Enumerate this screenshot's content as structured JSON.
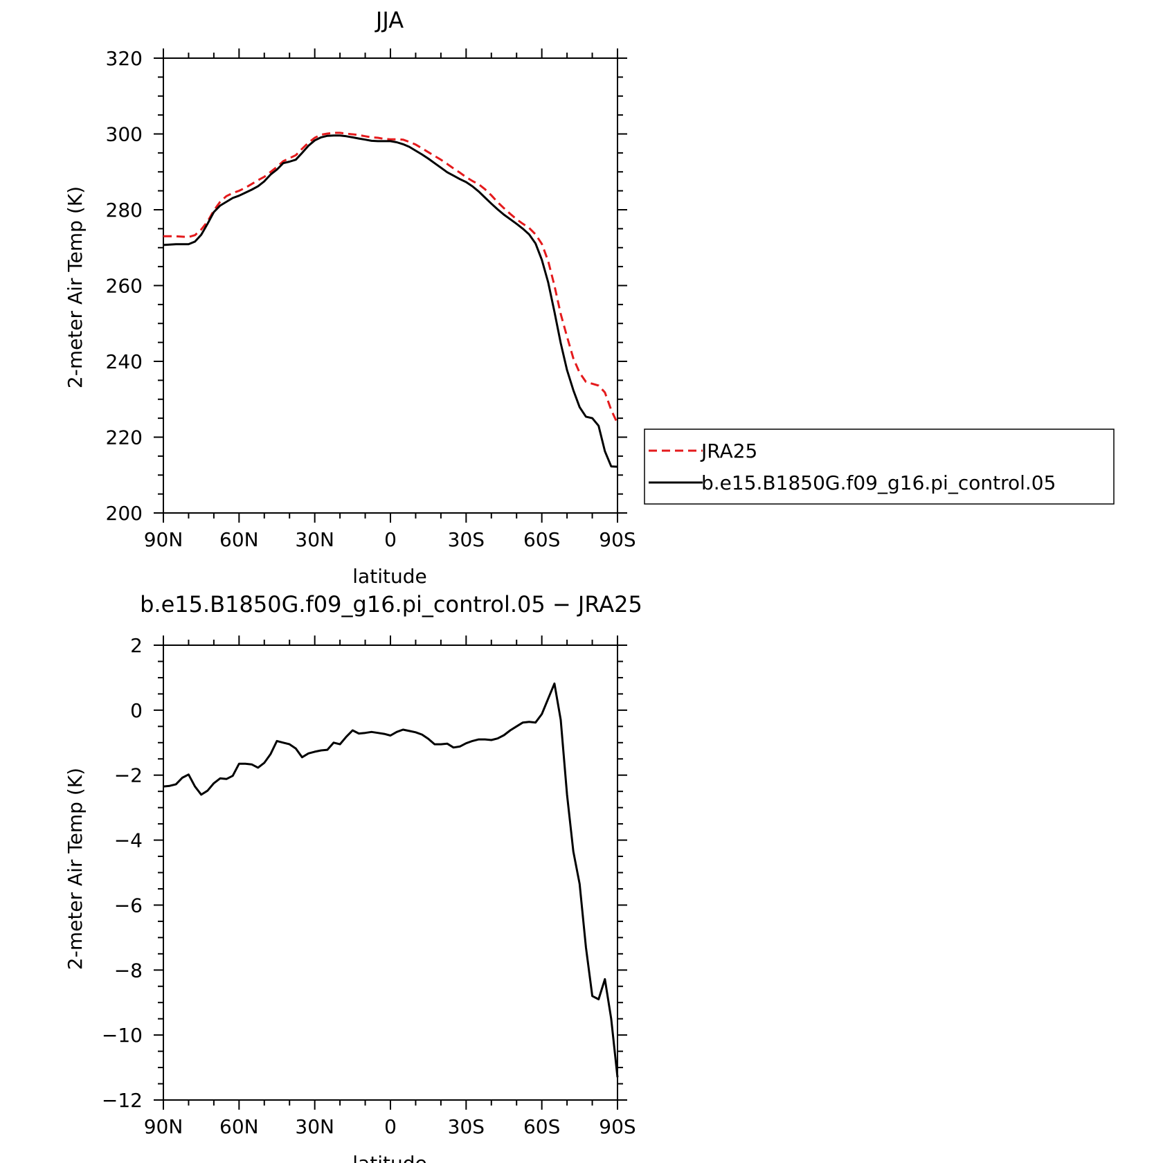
{
  "chart_data": [
    {
      "type": "line",
      "title": "JJA",
      "xlabel": "latitude",
      "ylabel": "2-meter Air Temp (K)",
      "xlim": [
        90,
        -90
      ],
      "ylim": [
        200,
        320
      ],
      "xticks": [
        90,
        60,
        30,
        0,
        -30,
        -60,
        -90
      ],
      "xtick_labels": [
        "90N",
        "60N",
        "30N",
        "0",
        "30S",
        "60S",
        "90S"
      ],
      "yticks": [
        200,
        220,
        240,
        260,
        280,
        300,
        320
      ],
      "ytick_labels": [
        "200",
        "220",
        "240",
        "260",
        "280",
        "300",
        "320"
      ],
      "legend_position": "right",
      "series": [
        {
          "name": "JRA25",
          "color": "#e41a1c",
          "dash": true,
          "x": [
            90,
            85,
            80,
            77.5,
            75,
            72.5,
            70,
            67.5,
            65,
            62.5,
            60,
            57.5,
            55,
            52.5,
            50,
            47.5,
            45,
            42.5,
            40,
            37.5,
            35,
            32.5,
            30,
            27.5,
            25,
            22.5,
            20,
            17.5,
            15,
            12.5,
            10,
            7.5,
            5,
            2.5,
            0,
            -2.5,
            -5,
            -7.5,
            -10,
            -12.5,
            -15,
            -17.5,
            -20,
            -22.5,
            -25,
            -27.5,
            -30,
            -32.5,
            -35,
            -37.5,
            -40,
            -42.5,
            -45,
            -47.5,
            -50,
            -52.5,
            -55,
            -57.5,
            -60,
            -62.5,
            -65,
            -67.5,
            -70,
            -72.5,
            -75,
            -77.5,
            -80,
            -82.5,
            -85,
            -87.5,
            -90
          ],
          "y": [
            273,
            273,
            272.8,
            273.3,
            274.8,
            276.9,
            279.8,
            282.1,
            283.6,
            284.4,
            285.0,
            285.8,
            286.8,
            287.8,
            288.7,
            290.0,
            291.3,
            292.8,
            293.6,
            294.4,
            296.1,
            297.7,
            299.0,
            299.8,
            300.1,
            300.3,
            300.3,
            300.1,
            299.9,
            299.7,
            299.4,
            299.1,
            299.0,
            298.7,
            298.6,
            298.6,
            298.5,
            297.9,
            297.2,
            296.2,
            295.2,
            294.2,
            293.2,
            292.1,
            290.9,
            289.8,
            288.6,
            287.6,
            286.7,
            285.4,
            283.8,
            282.0,
            280.4,
            278.9,
            277.5,
            276.3,
            275.2,
            273.5,
            271.0,
            266.5,
            260.0,
            252.5,
            246.5,
            240.8,
            237.0,
            234.6,
            234.1,
            233.6,
            231.8,
            227.2,
            223.6
          ]
        },
        {
          "name": "b.e15.B1850G.f09_g16.pi_control.05",
          "color": "#000000",
          "dash": false,
          "x": [
            90,
            85,
            80,
            77.5,
            75,
            72.5,
            70,
            67.5,
            65,
            62.5,
            60,
            57.5,
            55,
            52.5,
            50,
            47.5,
            45,
            42.5,
            40,
            37.5,
            35,
            32.5,
            30,
            27.5,
            25,
            22.5,
            20,
            17.5,
            15,
            12.5,
            10,
            7.5,
            5,
            2.5,
            0,
            -2.5,
            -5,
            -7.5,
            -10,
            -12.5,
            -15,
            -17.5,
            -20,
            -22.5,
            -25,
            -27.5,
            -30,
            -32.5,
            -35,
            -37.5,
            -40,
            -42.5,
            -45,
            -47.5,
            -50,
            -52.5,
            -55,
            -57.5,
            -60,
            -62.5,
            -65,
            -67.5,
            -70,
            -72.5,
            -75,
            -77.5,
            -80,
            -82.5,
            -85,
            -87.5,
            -90
          ],
          "y": [
            270.7,
            270.9,
            270.9,
            271.6,
            273.4,
            276.3,
            279.4,
            281.1,
            282.1,
            283.1,
            283.7,
            284.5,
            285.3,
            286.2,
            287.5,
            289.3,
            290.6,
            292.3,
            292.7,
            293.2,
            295.0,
            296.9,
            298.3,
            299.1,
            299.5,
            299.6,
            299.6,
            299.4,
            299.1,
            298.8,
            298.5,
            298.2,
            298.1,
            298.1,
            298.1,
            297.8,
            297.3,
            296.6,
            295.6,
            294.6,
            293.5,
            292.3,
            291.1,
            289.9,
            289.0,
            288.1,
            287.3,
            286.2,
            284.8,
            283.2,
            281.6,
            280.1,
            278.7,
            277.5,
            276.3,
            275.0,
            273.5,
            271.1,
            266.8,
            260.9,
            253.1,
            244.8,
            237.7,
            232.4,
            227.9,
            225.4,
            225.0,
            223.0,
            216.3,
            212.3,
            212.2
          ]
        }
      ]
    },
    {
      "type": "line",
      "title": "b.e15.B1850G.f09_g16.pi_control.05 − JRA25",
      "xlabel": "latitude",
      "ylabel": "2-meter Air Temp (K)",
      "xlim": [
        90,
        -90
      ],
      "ylim": [
        -12,
        2
      ],
      "xticks": [
        90,
        60,
        30,
        0,
        -30,
        -60,
        -90
      ],
      "xtick_labels": [
        "90N",
        "60N",
        "30N",
        "0",
        "30S",
        "60S",
        "90S"
      ],
      "yticks": [
        2,
        0,
        -2,
        -4,
        -6,
        -8,
        -10,
        -12
      ],
      "ytick_labels": [
        "2",
        "0",
        "−2",
        "−4",
        "−6",
        "−8",
        "−10",
        "−12"
      ],
      "series": [
        {
          "color": "#000000",
          "dash": false,
          "x": [
            90,
            87.5,
            85,
            82.5,
            80,
            77.5,
            75,
            72.5,
            70,
            67.5,
            65,
            62.5,
            60,
            57.5,
            55,
            52.5,
            50,
            47.5,
            45,
            42.5,
            40,
            37.5,
            35,
            32.5,
            30,
            27.5,
            25,
            22.5,
            20,
            17.5,
            15,
            12.5,
            10,
            7.5,
            5,
            2.5,
            0,
            -2.5,
            -5,
            -7.5,
            -10,
            -12.5,
            -15,
            -17.5,
            -20,
            -22.5,
            -25,
            -27.5,
            -30,
            -32.5,
            -35,
            -37.5,
            -40,
            -42.5,
            -45,
            -47.5,
            -50,
            -52.5,
            -55,
            -57.5,
            -60,
            -62.5,
            -65,
            -67.5,
            -70,
            -72.5,
            -75,
            -77.5,
            -80,
            -82.5,
            -85,
            -87.5,
            -90
          ],
          "y": [
            -2.35,
            -2.33,
            -2.28,
            -2.08,
            -1.98,
            -2.35,
            -2.6,
            -2.48,
            -2.25,
            -2.1,
            -2.12,
            -2.02,
            -1.65,
            -1.65,
            -1.67,
            -1.77,
            -1.62,
            -1.35,
            -0.95,
            -1.0,
            -1.05,
            -1.18,
            -1.45,
            -1.33,
            -1.28,
            -1.24,
            -1.22,
            -1.0,
            -1.05,
            -0.82,
            -0.62,
            -0.72,
            -0.7,
            -0.67,
            -0.7,
            -0.73,
            -0.78,
            -0.67,
            -0.6,
            -0.64,
            -0.68,
            -0.75,
            -0.88,
            -1.05,
            -1.05,
            -1.03,
            -1.15,
            -1.12,
            -1.02,
            -0.95,
            -0.9,
            -0.9,
            -0.92,
            -0.87,
            -0.77,
            -0.62,
            -0.5,
            -0.38,
            -0.36,
            -0.38,
            -0.12,
            0.35,
            0.82,
            -0.3,
            -2.6,
            -4.35,
            -5.35,
            -7.3,
            -8.8,
            -8.9,
            -8.28,
            -9.5,
            -11.3
          ]
        }
      ]
    }
  ]
}
